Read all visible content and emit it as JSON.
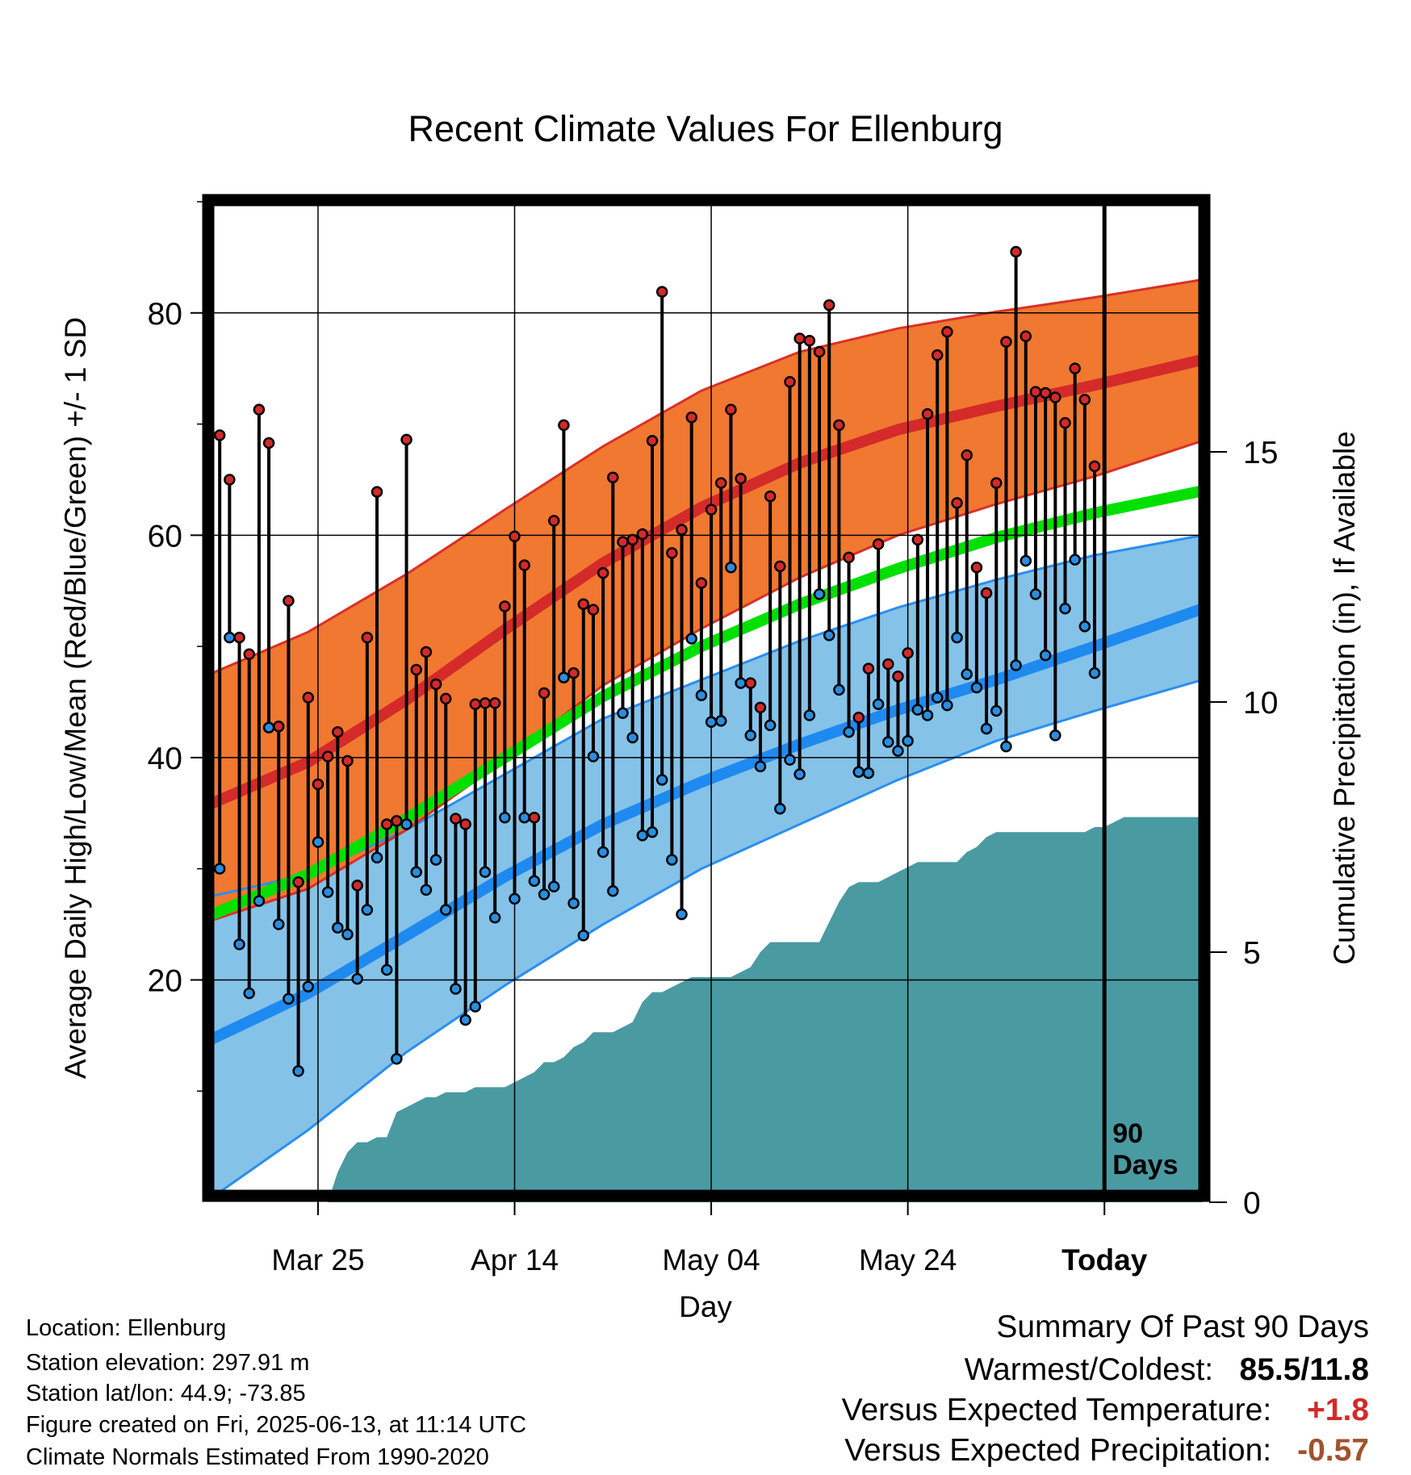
{
  "chart_data": {
    "type": "line",
    "title": "Recent Climate Values For Ellenburg",
    "xlabel": "Day",
    "ylabel": "Average Daily High/Low/Mean (Red/Blue/Green) +/- 1 SD",
    "y2label": "Cumulative Precipitation (in), If Available",
    "ylim": [
      0,
      90
    ],
    "y2lim": [
      0,
      20
    ],
    "y_ticks": [
      "20",
      "40",
      "60",
      "80"
    ],
    "y2_ticks": [
      "0",
      "5",
      "10",
      "15"
    ],
    "x_ticks": [
      "Mar 25",
      "Apr 14",
      "May 04",
      "May 24",
      "Today"
    ],
    "x_tick_days": [
      11,
      31,
      51,
      71,
      91
    ],
    "xlim": [
      0,
      101
    ],
    "today_day": 91,
    "today_label": "90\nDays",
    "grid": true,
    "colors": {
      "high_band": "#f07830",
      "high_band_edge": "#d93028",
      "high_mean": "#d42a2a",
      "low_band": "#85c2e8",
      "low_band_edge": "#2a8ef0",
      "low_mean": "#1e8af0",
      "mean": "#00e000",
      "precip": "#4a9aa2",
      "obs_high": "#d42a2a",
      "obs_low": "#2a8ee0"
    },
    "normal_high": {
      "days": [
        0,
        10,
        20,
        30,
        40,
        50,
        60,
        70,
        80,
        90,
        101
      ],
      "mean": [
        35.8,
        39.6,
        45.2,
        51.5,
        57.5,
        62.5,
        66.5,
        69.5,
        71.6,
        73.5,
        75.8
      ],
      "upper": [
        47.5,
        51.3,
        56.5,
        62.3,
        68.0,
        73.0,
        76.5,
        78.6,
        80.1,
        81.4,
        83.0
      ],
      "lower": [
        25.3,
        28.2,
        33.5,
        39.8,
        46.5,
        51.6,
        56.2,
        60.0,
        62.8,
        65.3,
        68.5
      ]
    },
    "normal_low": {
      "days": [
        0,
        10,
        20,
        30,
        40,
        50,
        60,
        70,
        80,
        90,
        101
      ],
      "mean": [
        14.6,
        18.8,
        24.0,
        29.3,
        34.0,
        37.8,
        41.2,
        44.3,
        47.0,
        50.0,
        53.4
      ],
      "upper": [
        27.5,
        29.5,
        33.5,
        38.5,
        43.5,
        47.0,
        50.5,
        53.5,
        56.0,
        58.2,
        60.0
      ],
      "lower": [
        0.3,
        6.5,
        13.5,
        19.5,
        25.0,
        30.0,
        34.0,
        38.0,
        41.5,
        44.2,
        47.0
      ]
    },
    "normal_mean": {
      "days": [
        0,
        10,
        20,
        30,
        40,
        50,
        60,
        70,
        80,
        90,
        101
      ],
      "values": [
        25.8,
        29.5,
        34.5,
        40.0,
        45.5,
        50.0,
        53.8,
        57.0,
        59.8,
        62.0,
        64.0
      ]
    },
    "observed_high": [
      69.0,
      65.0,
      50.8,
      49.3,
      71.3,
      68.3,
      42.8,
      54.1,
      28.8,
      45.4,
      37.6,
      40.1,
      42.3,
      39.7,
      28.5,
      50.8,
      63.9,
      34.0,
      34.3,
      68.6,
      47.9,
      49.5,
      46.6,
      45.3,
      34.5,
      34.0,
      44.8,
      44.9,
      44.9,
      53.6,
      59.9,
      57.3,
      34.6,
      45.8,
      61.3,
      69.9,
      47.6,
      53.8,
      53.3,
      56.6,
      65.2,
      59.4,
      59.6,
      60.1,
      68.5,
      81.9,
      58.4,
      60.5,
      70.6,
      55.7,
      62.3,
      64.7,
      71.3,
      65.1,
      46.7,
      44.5,
      63.5,
      57.2,
      73.8,
      77.7,
      77.5,
      76.5,
      80.7,
      69.9,
      58.0,
      43.6,
      48.0,
      59.2,
      48.4,
      47.3,
      49.4,
      59.6,
      70.9,
      76.2,
      78.3,
      62.9,
      67.2,
      57.1,
      54.8,
      64.7,
      77.4,
      85.5,
      77.9,
      72.9,
      72.8,
      72.4,
      70.1,
      75.0,
      72.2,
      66.2
    ],
    "observed_low": [
      30.0,
      50.8,
      23.2,
      18.8,
      27.1,
      42.7,
      25.0,
      18.3,
      11.8,
      19.4,
      32.4,
      27.9,
      24.7,
      24.1,
      20.1,
      26.3,
      31.0,
      20.9,
      12.9,
      34.0,
      29.7,
      28.1,
      30.8,
      26.3,
      19.2,
      16.4,
      17.6,
      29.7,
      25.6,
      34.6,
      27.3,
      34.6,
      28.9,
      27.7,
      28.4,
      47.2,
      26.9,
      24.0,
      40.1,
      31.5,
      28.0,
      44.0,
      41.8,
      33.0,
      33.3,
      38.0,
      30.8,
      25.9,
      50.7,
      45.6,
      43.2,
      43.3,
      57.1,
      46.7,
      42.0,
      39.2,
      42.9,
      35.4,
      39.8,
      38.5,
      43.8,
      54.7,
      51.0,
      46.1,
      42.3,
      38.7,
      38.6,
      44.8,
      41.4,
      40.6,
      41.5,
      44.3,
      43.8,
      45.4,
      44.7,
      50.8,
      47.5,
      46.3,
      42.6,
      44.2,
      41.0,
      48.3,
      57.7,
      54.7,
      49.2,
      42.0,
      53.4,
      57.8,
      51.8,
      47.6
    ],
    "precip_cumulative": {
      "days": [
        0,
        12,
        13,
        14,
        15,
        16,
        17,
        18,
        19,
        20,
        21,
        22,
        23,
        24,
        25,
        26,
        27,
        28,
        29,
        30,
        31,
        32,
        33,
        34,
        35,
        36,
        37,
        38,
        39,
        40,
        41,
        42,
        43,
        44,
        45,
        46,
        47,
        48,
        49,
        50,
        51,
        52,
        53,
        54,
        55,
        56,
        57,
        58,
        59,
        60,
        61,
        62,
        63,
        64,
        65,
        66,
        67,
        68,
        69,
        70,
        71,
        72,
        73,
        74,
        75,
        76,
        77,
        78,
        79,
        80,
        81,
        82,
        83,
        84,
        85,
        86,
        87,
        88,
        89,
        90,
        91,
        92,
        93,
        94,
        95,
        96,
        97,
        98,
        99,
        100,
        101
      ],
      "values": [
        0,
        0,
        0.6,
        1.0,
        1.2,
        1.2,
        1.3,
        1.3,
        1.8,
        1.9,
        2.0,
        2.1,
        2.1,
        2.2,
        2.2,
        2.2,
        2.3,
        2.3,
        2.3,
        2.3,
        2.4,
        2.5,
        2.6,
        2.8,
        2.8,
        2.9,
        3.1,
        3.2,
        3.4,
        3.4,
        3.4,
        3.5,
        3.6,
        4.0,
        4.2,
        4.2,
        4.3,
        4.4,
        4.5,
        4.5,
        4.5,
        4.5,
        4.5,
        4.6,
        4.7,
        5.0,
        5.2,
        5.2,
        5.2,
        5.2,
        5.2,
        5.2,
        5.6,
        6.0,
        6.3,
        6.4,
        6.4,
        6.4,
        6.5,
        6.6,
        6.7,
        6.8,
        6.8,
        6.8,
        6.8,
        6.8,
        7.0,
        7.1,
        7.3,
        7.4,
        7.4,
        7.4,
        7.4,
        7.4,
        7.4,
        7.4,
        7.4,
        7.4,
        7.4,
        7.5,
        7.5,
        7.6,
        7.7,
        7.7,
        7.7,
        7.7,
        7.7,
        7.7,
        7.7,
        7.7,
        7.7
      ]
    }
  },
  "info": {
    "location": "Location: Ellenburg",
    "elevation": "Station elevation: 297.91 m",
    "latlon": "Station lat/lon: 44.9; -73.85",
    "created": "Figure created on Fri, 2025-06-13, at 11:14 UTC",
    "normals": "Climate Normals Estimated From 1990-2020"
  },
  "summary": {
    "title": "Summary Of Past 90 Days",
    "warm_cold_label": "Warmest/Coldest:",
    "warm_cold_value": "85.5/11.8",
    "temp_label": "Versus Expected Temperature:",
    "temp_value": "+1.8",
    "temp_color": "#d42a2a",
    "precip_label": "Versus Expected Precipitation:",
    "precip_value": "-0.57",
    "precip_color": "#a0522d"
  }
}
